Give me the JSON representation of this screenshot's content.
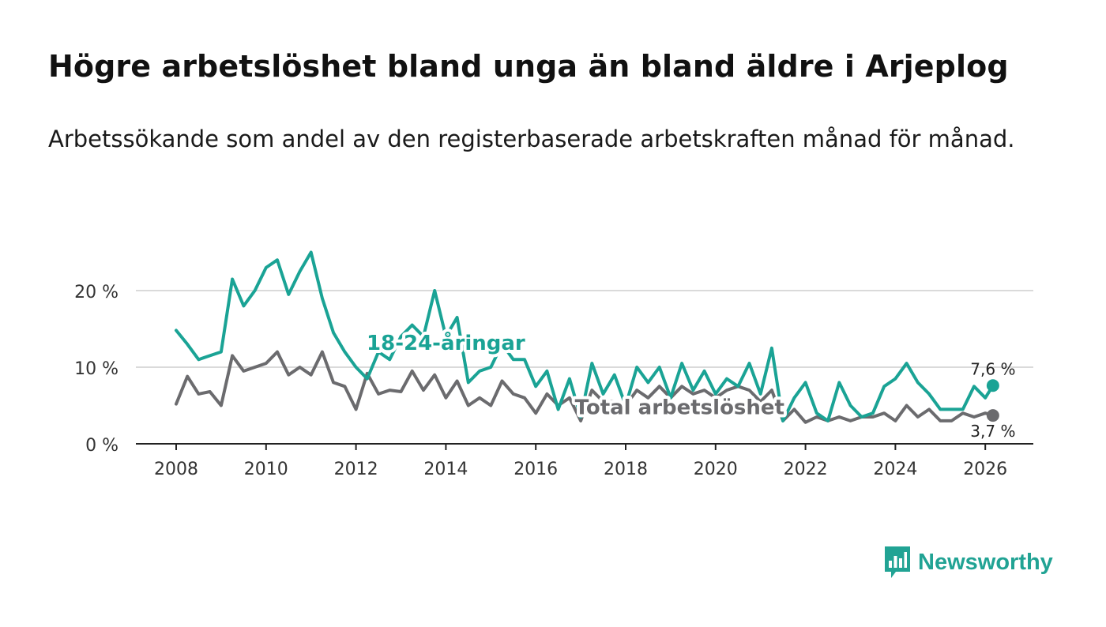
{
  "title": "Högre arbetslöshet bland unga än bland äldre i Arjeplog",
  "subtitle": "Arbetssökande som andel av den registerbaserade arbetskraften månad för månad.",
  "brand": {
    "name": "Newsworthy",
    "icon": "bar-chart-logo-icon",
    "color": "#21a394"
  },
  "chart_data": {
    "type": "line",
    "title": "Högre arbetslöshet bland unga än bland äldre i Arjeplog",
    "xlabel": "",
    "ylabel": "",
    "xlim": [
      2007.5,
      2027.2
    ],
    "ylim": [
      0,
      25
    ],
    "x_ticks": [
      2008,
      2010,
      2012,
      2014,
      2016,
      2018,
      2020,
      2022,
      2024,
      2026
    ],
    "x_tick_labels": [
      "2008",
      "2010",
      "2012",
      "2014",
      "2016",
      "2018",
      "2020",
      "2022",
      "2024",
      "2026"
    ],
    "y_ticks": [
      0,
      10,
      20
    ],
    "y_tick_labels": [
      "0 %",
      "10 %",
      "20 %"
    ],
    "grid": "horizontal",
    "series": [
      {
        "name": "18-24-åringar",
        "color": "#1aa395",
        "end_label": "7,6 %",
        "x": [
          2008.0,
          2008.25,
          2008.5,
          2008.75,
          2009.0,
          2009.25,
          2009.5,
          2009.75,
          2010.0,
          2010.25,
          2010.5,
          2010.75,
          2011.0,
          2011.25,
          2011.5,
          2011.75,
          2012.0,
          2012.25,
          2012.5,
          2012.75,
          2013.0,
          2013.25,
          2013.5,
          2013.75,
          2014.0,
          2014.25,
          2014.5,
          2014.75,
          2015.0,
          2015.25,
          2015.5,
          2015.75,
          2016.0,
          2016.25,
          2016.5,
          2016.75,
          2017.0,
          2017.25,
          2017.5,
          2017.75,
          2018.0,
          2018.25,
          2018.5,
          2018.75,
          2019.0,
          2019.25,
          2019.5,
          2019.75,
          2020.0,
          2020.25,
          2020.5,
          2020.75,
          2021.0,
          2021.25,
          2021.5,
          2021.75,
          2022.0,
          2022.25,
          2022.5,
          2022.75,
          2023.0,
          2023.25,
          2023.5,
          2023.75,
          2024.0,
          2024.25,
          2024.5,
          2024.75,
          2025.0,
          2025.25,
          2025.5,
          2025.75,
          2026.0,
          2026.17
        ],
        "values": [
          14.8,
          13.0,
          11.0,
          11.5,
          12.0,
          21.5,
          18.0,
          20.0,
          23.0,
          24.0,
          19.5,
          22.5,
          25.0,
          19.0,
          14.5,
          12.0,
          10.0,
          8.5,
          12.0,
          11.0,
          14.0,
          15.5,
          14.0,
          20.0,
          14.0,
          16.5,
          8.0,
          9.5,
          10.0,
          13.0,
          11.0,
          11.0,
          7.5,
          9.5,
          4.5,
          8.5,
          3.5,
          10.5,
          6.5,
          9.0,
          5.0,
          10.0,
          8.0,
          10.0,
          6.0,
          10.5,
          7.0,
          9.5,
          6.5,
          8.5,
          7.5,
          10.5,
          6.5,
          12.5,
          3.0,
          6.0,
          8.0,
          4.0,
          3.0,
          8.0,
          5.0,
          3.5,
          4.0,
          7.5,
          8.5,
          10.5,
          8.0,
          6.5,
          4.5,
          4.5,
          4.5,
          7.5,
          6.0,
          7.6
        ]
      },
      {
        "name": "Total arbetslöshet",
        "color": "#6b6b6e",
        "end_label": "3,7 %",
        "x": [
          2008.0,
          2008.25,
          2008.5,
          2008.75,
          2009.0,
          2009.25,
          2009.5,
          2009.75,
          2010.0,
          2010.25,
          2010.5,
          2010.75,
          2011.0,
          2011.25,
          2011.5,
          2011.75,
          2012.0,
          2012.25,
          2012.5,
          2012.75,
          2013.0,
          2013.25,
          2013.5,
          2013.75,
          2014.0,
          2014.25,
          2014.5,
          2014.75,
          2015.0,
          2015.25,
          2015.5,
          2015.75,
          2016.0,
          2016.25,
          2016.5,
          2016.75,
          2017.0,
          2017.25,
          2017.5,
          2017.75,
          2018.0,
          2018.25,
          2018.5,
          2018.75,
          2019.0,
          2019.25,
          2019.5,
          2019.75,
          2020.0,
          2020.25,
          2020.5,
          2020.75,
          2021.0,
          2021.25,
          2021.5,
          2021.75,
          2022.0,
          2022.25,
          2022.5,
          2022.75,
          2023.0,
          2023.25,
          2023.5,
          2023.75,
          2024.0,
          2024.25,
          2024.5,
          2024.75,
          2025.0,
          2025.25,
          2025.5,
          2025.75,
          2026.0,
          2026.17
        ],
        "values": [
          5.2,
          8.8,
          6.5,
          6.8,
          5.0,
          11.5,
          9.5,
          10.0,
          10.5,
          12.0,
          9.0,
          10.0,
          9.0,
          12.0,
          8.0,
          7.5,
          4.5,
          9.2,
          6.5,
          7.0,
          6.8,
          9.5,
          7.0,
          9.0,
          6.0,
          8.2,
          5.0,
          6.0,
          5.0,
          8.2,
          6.5,
          6.0,
          4.0,
          6.5,
          5.0,
          6.0,
          3.0,
          7.0,
          5.5,
          5.5,
          5.0,
          7.0,
          6.0,
          7.5,
          6.0,
          7.5,
          6.5,
          7.0,
          6.0,
          7.0,
          7.5,
          7.0,
          5.5,
          7.0,
          3.0,
          4.5,
          2.8,
          3.5,
          3.0,
          3.5,
          3.0,
          3.5,
          3.5,
          4.0,
          3.0,
          5.0,
          3.5,
          4.5,
          3.0,
          3.0,
          4.0,
          3.5,
          4.0,
          3.7
        ]
      }
    ],
    "annotations": [
      {
        "text": "18-24-åringar",
        "series": "18-24-åringar",
        "x": 2014.0,
        "y": 13.3
      },
      {
        "text": "Total arbetslöshet",
        "series": "Total arbetslöshet",
        "x": 2019.2,
        "y": 4.9
      }
    ]
  }
}
